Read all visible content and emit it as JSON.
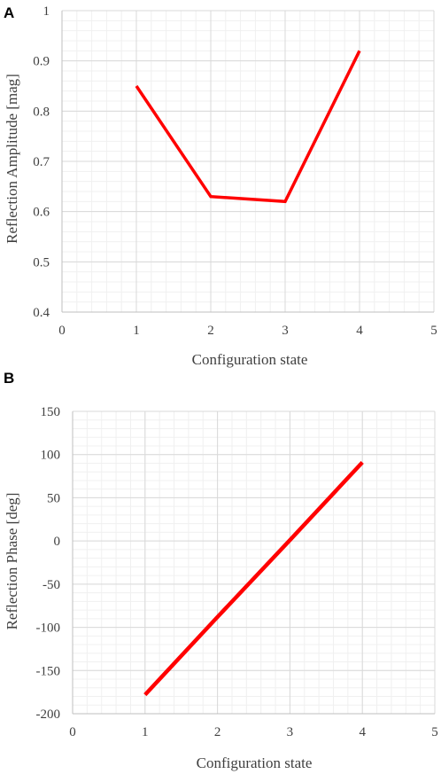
{
  "chart_data": [
    {
      "panel": "A",
      "type": "line",
      "xlabel": "Configuration state",
      "ylabel": "Reflection Amplitude [mag]",
      "xlim": [
        0,
        5
      ],
      "ylim": [
        0.4,
        1.0
      ],
      "x_ticks": [
        "0",
        "1",
        "2",
        "3",
        "4",
        "5"
      ],
      "y_ticks": [
        "0.4",
        "0.5",
        "0.6",
        "0.7",
        "0.8",
        "0.9",
        "1"
      ],
      "grid": true,
      "series": [
        {
          "x": [
            1,
            2,
            3,
            4
          ],
          "values": [
            0.85,
            0.63,
            0.62,
            0.92
          ],
          "color": "#ff0000"
        }
      ]
    },
    {
      "panel": "B",
      "type": "line",
      "xlabel": "Configuration state",
      "ylabel": "Reflection Phase [deg]",
      "xlim": [
        0,
        5
      ],
      "ylim": [
        -200,
        150
      ],
      "x_ticks": [
        "0",
        "1",
        "2",
        "3",
        "4",
        "5"
      ],
      "y_ticks": [
        "-200",
        "-150",
        "-100",
        "-50",
        "0",
        "50",
        "100",
        "150"
      ],
      "grid": true,
      "series": [
        {
          "x": [
            1,
            2,
            3,
            4
          ],
          "values": [
            -178,
            -88,
            1,
            91
          ],
          "color": "#ff0000"
        }
      ]
    }
  ]
}
